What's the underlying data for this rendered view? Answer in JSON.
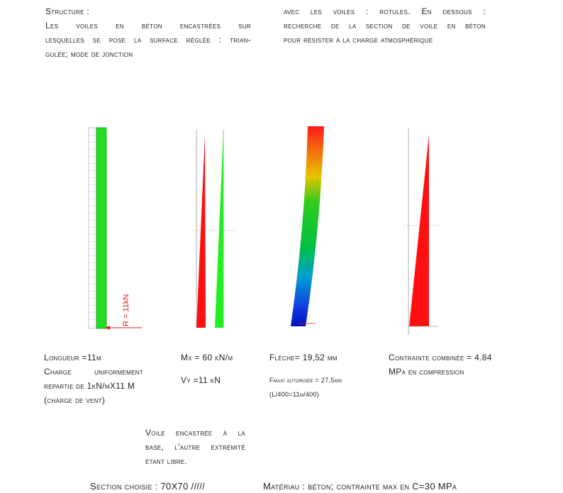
{
  "header": {
    "left": {
      "title": "Structure :",
      "lines": [
        "Les voiles en béton encastrées sur",
        "lesquelles se pose la surface réglée : trian-",
        "gulée; mode de jonction"
      ]
    },
    "right": {
      "lines": [
        "avec les voiles : rotules. En dessous :",
        "recherche de la section de voile en béton",
        "pour résister à la charge atmosphérique"
      ]
    }
  },
  "figure_labels": {
    "reaction": "R = 11kN"
  },
  "captions": [
    {
      "lines": [
        "Longueur =11m",
        "Charge uniformement",
        "repartie de 1kN/mX11 M",
        "(charge de vent)"
      ]
    },
    {
      "lines": [
        "Mx = 60 kN/m",
        "Vy =11 kN"
      ]
    },
    {
      "lines": [
        "Flèche= 19,52 mm",
        "Fmaxi autorisée = 27,5mm",
        "(L/400=11m/400)"
      ]
    },
    {
      "lines": [
        "Contrainte combinée = 4.84",
        "MPa en compression"
      ]
    }
  ],
  "note": {
    "lines": [
      "Voile encastrée à la",
      "base, l'autre extrémité",
      "étant libre."
    ]
  },
  "footer": {
    "section": "Section choisie  : 70X70 /////",
    "material": "Matériau : béton; contrainte max en C=30 MPa"
  }
}
